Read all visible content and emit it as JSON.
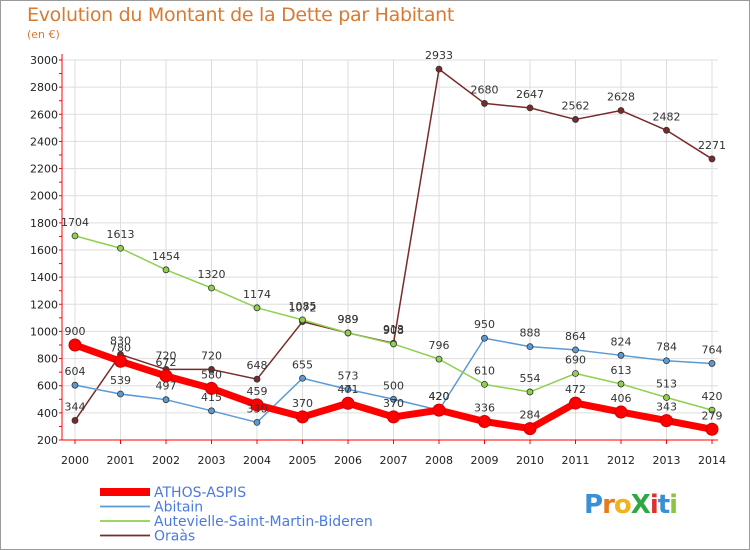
{
  "chart_data": {
    "type": "line",
    "title": "Evolution du Montant de la Dette par Habitant",
    "subtitle": "(en €)",
    "xlabel": "",
    "ylabel": "",
    "x": [
      "2000",
      "2001",
      "2002",
      "2003",
      "2004",
      "2005",
      "2006",
      "2007",
      "2008",
      "2009",
      "2010",
      "2011",
      "2012",
      "2013",
      "2014"
    ],
    "ylim": [
      200,
      3000
    ],
    "yticks": [
      200,
      400,
      600,
      800,
      1000,
      1200,
      1400,
      1600,
      1800,
      2000,
      2200,
      2400,
      2600,
      2800,
      3000
    ],
    "grid": true,
    "legend_position": "bottom-left",
    "series": [
      {
        "name": "ATHOS-ASPIS",
        "color": "#ff0000",
        "values": [
          900,
          780,
          672,
          580,
          459,
          370,
          471,
          370,
          420,
          336,
          284,
          472,
          406,
          343,
          279
        ]
      },
      {
        "name": "Abitain",
        "color": "#5b9bd5",
        "values": [
          604,
          539,
          497,
          415,
          330,
          655,
          573,
          500,
          420,
          950,
          888,
          864,
          824,
          784,
          764
        ]
      },
      {
        "name": "Autevielle-Saint-Martin-Bideren",
        "color": "#8fd04f",
        "values": [
          1704,
          1613,
          1454,
          1320,
          1174,
          1085,
          989,
          908,
          796,
          610,
          554,
          690,
          613,
          513,
          420
        ]
      },
      {
        "name": "Oraàs",
        "color": "#7a2a2a",
        "values": [
          344,
          830,
          720,
          720,
          648,
          1072,
          989,
          913,
          2933,
          2680,
          2647,
          2562,
          2628,
          2482,
          2271
        ]
      }
    ]
  },
  "logo": {
    "text": "ProXiti"
  }
}
